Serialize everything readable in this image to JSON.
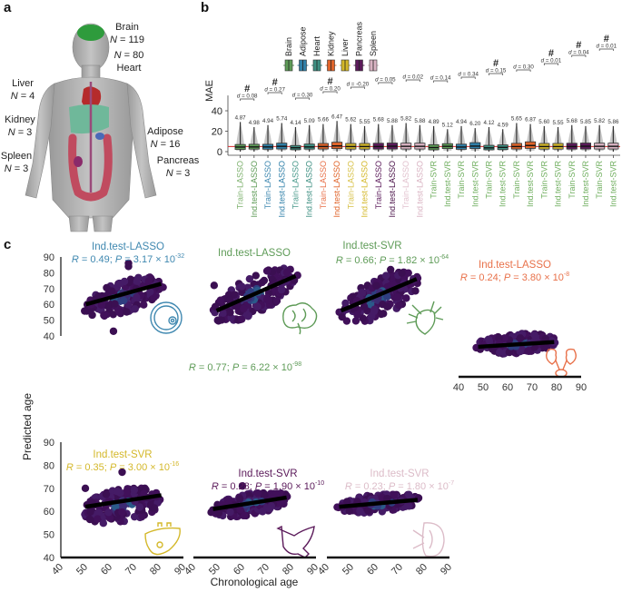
{
  "panel_labels": {
    "a": "a",
    "b": "b",
    "c": "c"
  },
  "panel_a": {
    "organs": [
      {
        "name": "Brain",
        "n_label": "N = 119",
        "color": "#2e9b3c"
      },
      {
        "name": "Heart",
        "n_label": "N = 80",
        "color": "#b52b2b"
      },
      {
        "name": "Liver",
        "n_label": "N = 4",
        "color": "#5fa884"
      },
      {
        "name": "Kidney",
        "n_label": "N = 3",
        "color": "#7a6fb8"
      },
      {
        "name": "Spleen",
        "n_label": "N = 3",
        "color": "#a04070"
      },
      {
        "name": "Adipose",
        "n_label": "N = 16",
        "color": "#d0d0d0"
      },
      {
        "name": "Pancreas",
        "n_label": "N = 3",
        "color": "#c06090"
      }
    ]
  },
  "chart_data": [
    {
      "type": "box",
      "id": "panel-b",
      "title": "",
      "xlabel": "",
      "ylabel": "MAE",
      "ylim": [
        0,
        55
      ],
      "yticks": [
        0,
        20,
        40
      ],
      "reference_line_value": 5.0,
      "reference_line_color": "#d62728",
      "legend": {
        "placement": "top-center",
        "entries": [
          {
            "label": "Brain",
            "color": "#5e9b57"
          },
          {
            "label": "Adipose",
            "color": "#2f7fa8"
          },
          {
            "label": "Heart",
            "color": "#3e8f82"
          },
          {
            "label": "Kidney",
            "color": "#e0642a"
          },
          {
            "label": "Liver",
            "color": "#d4b82a"
          },
          {
            "label": "Pancreas",
            "color": "#5b1a5a"
          },
          {
            "label": "Spleen",
            "color": "#d9b3c2"
          }
        ]
      },
      "categories": [
        "Train-LASSO",
        "Ind.test-LASSO",
        "Train-LASSO",
        "Ind.test-LASSO",
        "Train-LASSO",
        "Ind.test-LASSO",
        "Train-LASSO",
        "Ind.test-LASSO",
        "Train-LASSO",
        "Ind.test-LASSO",
        "Train-LASSO",
        "Ind.test-LASSO",
        "Train-LASSO",
        "Ind.test-LASSO",
        "Train-SVR",
        "Ind.test-SVR",
        "Train-SVR",
        "Ind.test-SVR",
        "Train-SVR",
        "Ind.test-SVR",
        "Train-SVR",
        "Ind.test-SVR",
        "Train-SVR",
        "Ind.test-SVR",
        "Train-SVR",
        "Ind.test-SVR",
        "Train-SVR",
        "Ind.test-SVR"
      ],
      "category_colors": [
        "#7fb26f",
        "#5e9b57",
        "#3f88b0",
        "#2f7fa8",
        "#4a9a8c",
        "#3e8f82",
        "#e8714a",
        "#e0642a",
        "#d8c24a",
        "#d4b82a",
        "#5b1a5a",
        "#4a1249",
        "#e2c3cf",
        "#d9b3c2",
        "#6fae5e",
        "#6fae5e",
        "#6fae5e",
        "#6fae5e",
        "#6fae5e",
        "#6fae5e",
        "#6fae5e",
        "#6fae5e",
        "#6fae5e",
        "#6fae5e",
        "#6fae5e",
        "#6fae5e",
        "#6fae5e",
        "#6fae5e"
      ],
      "box_colors": [
        "#5e9b57",
        "#5e9b57",
        "#2f7fa8",
        "#2f7fa8",
        "#3e8f82",
        "#3e8f82",
        "#e0642a",
        "#e0642a",
        "#d4b82a",
        "#d4b82a",
        "#5b1a5a",
        "#5b1a5a",
        "#d9b3c2",
        "#d9b3c2",
        "#5e9b57",
        "#5e9b57",
        "#2f7fa8",
        "#2f7fa8",
        "#3e8f82",
        "#3e8f82",
        "#e0642a",
        "#e0642a",
        "#d4b82a",
        "#d4b82a",
        "#5b1a5a",
        "#5b1a5a",
        "#d9b3c2",
        "#d9b3c2"
      ],
      "mean_labels": [
        "4.87",
        "4.98",
        "4.94",
        "5.74",
        "4.14",
        "5.09",
        "5.66",
        "6.47",
        "5.62",
        "5.55",
        "5.68",
        "5.88",
        "5.82",
        "5.88",
        "4.89",
        "5.12",
        "4.94",
        "6.20",
        "4.12",
        "4.59",
        "5.65",
        "6.87",
        "5.60",
        "5.55",
        "5.68",
        "5.85",
        "5.82",
        "5.86"
      ],
      "medians": [
        4.5,
        4.6,
        4.6,
        5.2,
        3.8,
        4.6,
        5.0,
        5.6,
        5.0,
        5.0,
        5.0,
        5.3,
        5.2,
        5.2,
        4.0,
        5.2,
        4.5,
        5.4,
        3.7,
        4.2,
        5.0,
        6.0,
        5.0,
        5.0,
        5.0,
        5.3,
        5.2,
        5.2
      ],
      "q1": [
        2.2,
        2.5,
        2.4,
        2.6,
        1.9,
        2.5,
        2.6,
        3.0,
        2.5,
        2.5,
        2.5,
        2.6,
        2.6,
        2.6,
        1.8,
        3.0,
        2.3,
        3.0,
        1.8,
        2.0,
        2.6,
        3.2,
        2.5,
        2.5,
        2.5,
        2.6,
        2.6,
        2.6
      ],
      "q3": [
        7.0,
        7.2,
        7.2,
        8.3,
        6.0,
        7.4,
        8.0,
        9.2,
        8.0,
        8.0,
        8.2,
        8.4,
        8.3,
        8.3,
        6.8,
        7.8,
        7.3,
        8.8,
        6.2,
        6.6,
        8.1,
        9.6,
        8.0,
        8.0,
        8.2,
        8.4,
        8.3,
        8.3
      ],
      "whisker_max": [
        29,
        24,
        26,
        28,
        24,
        26,
        27,
        30,
        27,
        25,
        27,
        26,
        28,
        26,
        25,
        22,
        25,
        23,
        24,
        22,
        28,
        27,
        25,
        24,
        26,
        25,
        26,
        25
      ],
      "comparisons": [
        {
          "pair": [
            0,
            1
          ],
          "label": "d = 0.08",
          "significant": true,
          "marker": "#"
        },
        {
          "pair": [
            2,
            3
          ],
          "label": "d = 0.27",
          "significant": true,
          "marker": "#"
        },
        {
          "pair": [
            4,
            5
          ],
          "label": "d = 0.30",
          "significant": false,
          "marker": ""
        },
        {
          "pair": [
            6,
            7
          ],
          "label": "d = 0.20",
          "significant": true,
          "marker": "#"
        },
        {
          "pair": [
            8,
            9
          ],
          "label": "d = -0.20",
          "significant": false,
          "marker": ""
        },
        {
          "pair": [
            10,
            11
          ],
          "label": "d = 0.05",
          "significant": false,
          "marker": ""
        },
        {
          "pair": [
            12,
            13
          ],
          "label": "d = 0.02",
          "significant": false,
          "marker": ""
        },
        {
          "pair": [
            14,
            15
          ],
          "label": "d = 0.14",
          "significant": false,
          "marker": ""
        },
        {
          "pair": [
            16,
            17
          ],
          "label": "d = 0.34",
          "significant": false,
          "marker": ""
        },
        {
          "pair": [
            18,
            19
          ],
          "label": "d = 0.15",
          "significant": true,
          "marker": "#"
        },
        {
          "pair": [
            20,
            21
          ],
          "label": "d = 0.30",
          "significant": false,
          "marker": ""
        },
        {
          "pair": [
            22,
            23
          ],
          "label": "d = 0.01",
          "significant": true,
          "marker": "#"
        },
        {
          "pair": [
            24,
            25
          ],
          "label": "d = 0.04",
          "significant": true,
          "marker": "#"
        },
        {
          "pair": [
            26,
            27
          ],
          "label": "d = 0.01",
          "significant": true,
          "marker": "#"
        }
      ]
    },
    {
      "type": "scatter",
      "id": "panel-c",
      "xlabel": "Chronological age",
      "ylabel": "Predicted age",
      "xlim": [
        40,
        90
      ],
      "ylim": [
        40,
        90
      ],
      "xticks": [
        40,
        50,
        60,
        70,
        80,
        90
      ],
      "yticks": [
        40,
        50,
        60,
        70,
        80,
        90
      ],
      "subplots": [
        {
          "organ": "Adipose",
          "title": "Ind.test-LASSO",
          "R": "0.49",
          "P_mantissa": "3.17",
          "P_exp": "-32",
          "color": "#3f88b0",
          "fit": {
            "x": [
              50,
              80
            ],
            "y": [
              60,
              73
            ]
          },
          "cloud": {
            "xmin": 49,
            "xmax": 81,
            "ymin": 50,
            "ymax": 80,
            "outliers": [
              [
                61,
                43
              ],
              [
                67,
                86
              ],
              [
                67,
                84
              ]
            ]
          }
        },
        {
          "organ": "Brain",
          "title": "Ind.test-LASSO",
          "R": "0.77",
          "P_mantissa": "6.22",
          "P_exp": "-98",
          "color": "#5e9b57",
          "fit": {
            "x": [
              47,
              80
            ],
            "y": [
              56,
              78
            ]
          },
          "cloud": {
            "xmin": 45,
            "xmax": 81,
            "ymin": 48,
            "ymax": 84,
            "outliers": [
              [
                46,
                72
              ]
            ]
          }
        },
        {
          "organ": "Heart",
          "title": "Ind.test-SVR",
          "R": "0.66",
          "P_mantissa": "1.82",
          "P_exp": "-64",
          "color": "#5e9b57",
          "fit": {
            "x": [
              46,
              78
            ],
            "y": [
              56,
              76
            ]
          },
          "cloud": {
            "xmin": 45,
            "xmax": 79,
            "ymin": 46,
            "ymax": 82,
            "outliers": [
              [
                67,
                82
              ]
            ]
          }
        },
        {
          "organ": "Kidney",
          "title": "Ind.test-LASSO",
          "R": "0.24",
          "P_mantissa": "3.80",
          "P_exp": "-8",
          "color": "#e8714a",
          "fit": {
            "x": [
              48,
              79
            ],
            "y": [
              59,
              62
            ]
          },
          "cloud": {
            "xmin": 47,
            "xmax": 80,
            "ymin": 52,
            "ymax": 70,
            "outliers": []
          }
        },
        {
          "organ": "Liver",
          "title": "Ind.test-SVR",
          "R": "0.35",
          "P_mantissa": "3.00",
          "P_exp": "-16",
          "color": "#d4b82a",
          "fit": {
            "x": [
              50,
              81
            ],
            "y": [
              62,
              67
            ]
          },
          "cloud": {
            "xmin": 49,
            "xmax": 81,
            "ymin": 52,
            "ymax": 73,
            "outliers": [
              [
                50,
                70
              ],
              [
                65,
                77
              ]
            ]
          }
        },
        {
          "organ": "Pancreas",
          "title": "Ind.test-SVR",
          "R": "0.28",
          "P_mantissa": "1.90",
          "P_exp": "-10",
          "color": "#5b1a5a",
          "fit": {
            "x": [
              48,
              78
            ],
            "y": [
              61,
              66
            ]
          },
          "cloud": {
            "xmin": 47,
            "xmax": 79,
            "ymin": 56,
            "ymax": 70,
            "outliers": [
              [
                60,
                71
              ]
            ]
          }
        },
        {
          "organ": "Spleen",
          "title": "Ind.test-SVR",
          "R": "0.23",
          "P_mantissa": "1.80",
          "P_exp": "-7",
          "color": "#dcbcc8",
          "fit": {
            "x": [
              45,
              77
            ],
            "y": [
              62,
              65
            ]
          },
          "cloud": {
            "xmin": 44,
            "xmax": 78,
            "ymin": 58,
            "ymax": 69,
            "outliers": []
          }
        }
      ]
    }
  ]
}
